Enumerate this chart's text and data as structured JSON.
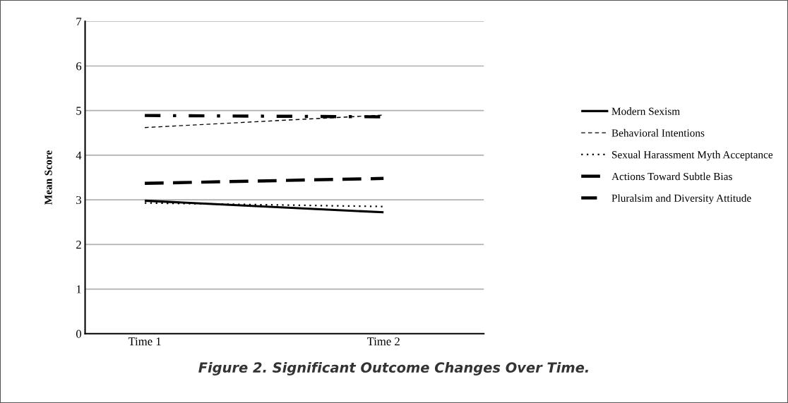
{
  "chart_data": {
    "type": "line",
    "ylabel": "Mean Score",
    "categories": [
      "Time 1",
      "Time 2"
    ],
    "ylim": [
      0,
      7
    ],
    "yticks": [
      0,
      1,
      2,
      3,
      4,
      5,
      6,
      7
    ],
    "grid": "y",
    "legend": "right",
    "marker": "none",
    "series": [
      {
        "name": "Modern Sexism",
        "color": "#000000",
        "line_style": "solid",
        "values": [
          2.98,
          2.72
        ]
      },
      {
        "name": "Behavioral Intentions",
        "color": "#000000",
        "line_style": "dashed",
        "values": [
          4.62,
          4.9
        ]
      },
      {
        "name": "Sexual Harassment Myth Acceptance",
        "color": "#000000",
        "line_style": "dotted",
        "values": [
          2.93,
          2.85
        ]
      },
      {
        "name": "Actions Toward Subtle Bias",
        "color": "#000000",
        "line_style": "long dashed",
        "values": [
          3.37,
          3.48
        ]
      },
      {
        "name": "Pluralsim and Diversity Attitude",
        "color": "#000000",
        "line_style": "dashdot",
        "values": [
          4.89,
          4.86
        ]
      }
    ],
    "annotations": [
      "Figure 2. Significant Outcome Changes Over Time."
    ]
  }
}
